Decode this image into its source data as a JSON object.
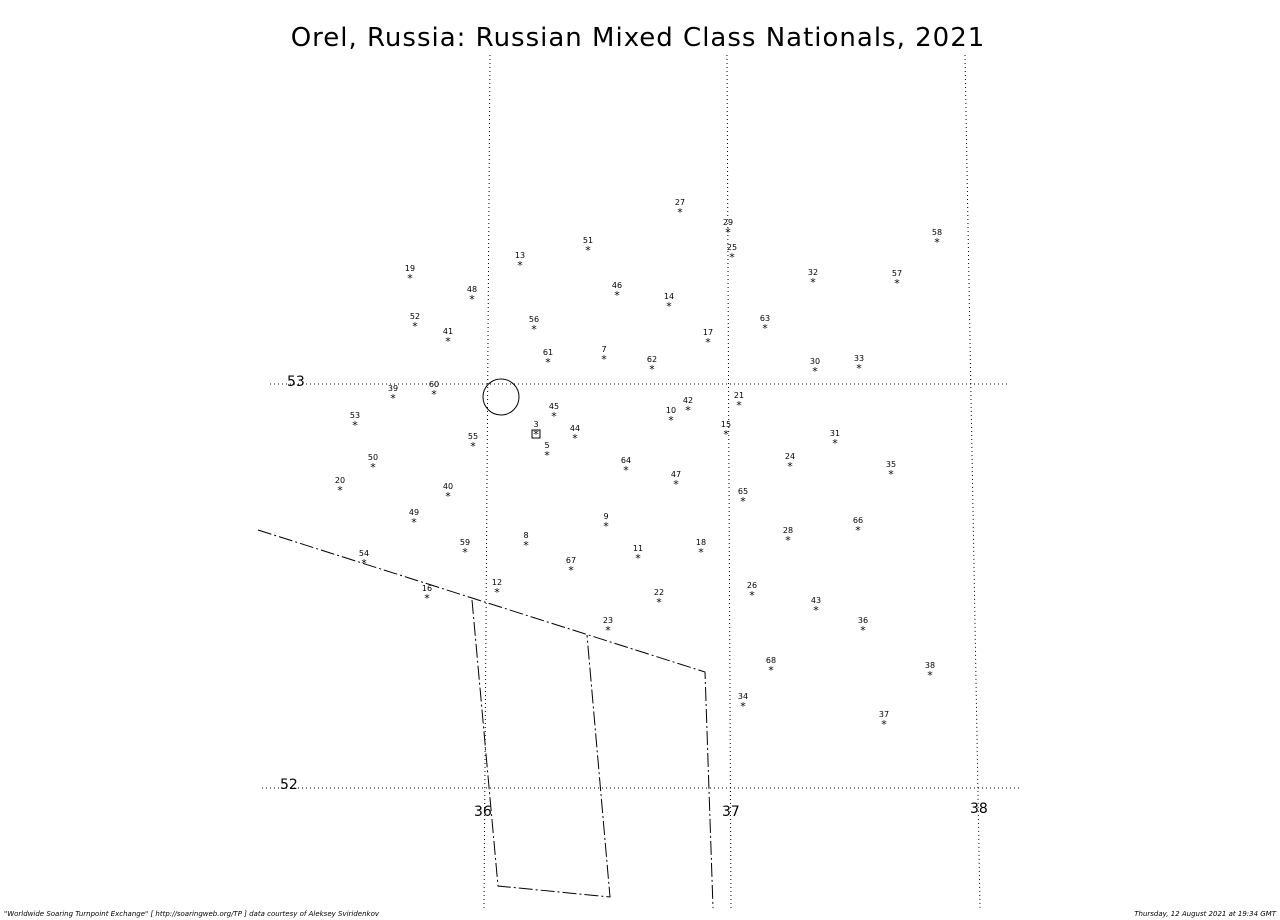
{
  "title": "Orel, Russia: Russian Mixed Class Nationals, 2021",
  "grid_labels": {
    "lat": [
      "53",
      "52"
    ],
    "lon": [
      "36",
      "37",
      "38"
    ]
  },
  "points": [
    {
      "label": "27"
    },
    {
      "label": "29"
    },
    {
      "label": "25"
    },
    {
      "label": "51"
    },
    {
      "label": "13"
    },
    {
      "label": "58"
    },
    {
      "label": "19"
    },
    {
      "label": "48"
    },
    {
      "label": "46"
    },
    {
      "label": "14"
    },
    {
      "label": "32"
    },
    {
      "label": "57"
    },
    {
      "label": "52"
    },
    {
      "label": "56"
    },
    {
      "label": "41"
    },
    {
      "label": "17"
    },
    {
      "label": "63"
    },
    {
      "label": "61"
    },
    {
      "label": "7"
    },
    {
      "label": "62"
    },
    {
      "label": "30"
    },
    {
      "label": "33"
    },
    {
      "label": "39"
    },
    {
      "label": "60"
    },
    {
      "label": "21"
    },
    {
      "label": "42"
    },
    {
      "label": "10"
    },
    {
      "label": "45"
    },
    {
      "label": "53"
    },
    {
      "label": "15"
    },
    {
      "label": "31"
    },
    {
      "label": "55"
    },
    {
      "label": "3"
    },
    {
      "label": "44"
    },
    {
      "label": "5"
    },
    {
      "label": "64"
    },
    {
      "label": "47"
    },
    {
      "label": "24"
    },
    {
      "label": "35"
    },
    {
      "label": "50"
    },
    {
      "label": "20"
    },
    {
      "label": "40"
    },
    {
      "label": "65"
    },
    {
      "label": "49"
    },
    {
      "label": "9"
    },
    {
      "label": "66"
    },
    {
      "label": "28"
    },
    {
      "label": "8"
    },
    {
      "label": "59"
    },
    {
      "label": "11"
    },
    {
      "label": "18"
    },
    {
      "label": "54"
    },
    {
      "label": "67"
    },
    {
      "label": "16"
    },
    {
      "label": "12"
    },
    {
      "label": "26"
    },
    {
      "label": "22"
    },
    {
      "label": "43"
    },
    {
      "label": "23"
    },
    {
      "label": "36"
    },
    {
      "label": "68"
    },
    {
      "label": "38"
    },
    {
      "label": "34"
    },
    {
      "label": "37"
    }
  ],
  "footer": {
    "left": "\"Worldwide Soaring Turnpoint Exchange\" [ http://soaringweb.org/TP ] data courtesy of Aleksey Sviridenkov",
    "right": "Thursday, 12 August 2021 at 19:34 GMT"
  }
}
